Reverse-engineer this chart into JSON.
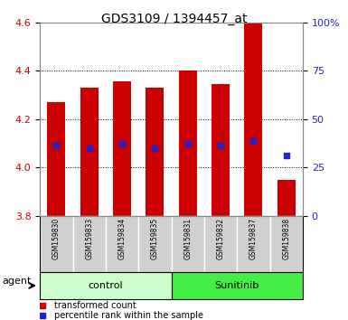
{
  "title": "GDS3109 / 1394457_at",
  "samples": [
    "GSM159830",
    "GSM159833",
    "GSM159834",
    "GSM159835",
    "GSM159831",
    "GSM159832",
    "GSM159837",
    "GSM159838"
  ],
  "bar_tops": [
    4.27,
    4.33,
    4.355,
    4.33,
    4.4,
    4.345,
    4.6,
    3.95
  ],
  "bar_bottom": 3.8,
  "percentile_values": [
    4.09,
    4.08,
    4.1,
    4.08,
    4.1,
    4.09,
    4.11,
    4.05
  ],
  "ylim_left": [
    3.8,
    4.6
  ],
  "ylim_right": [
    0,
    100
  ],
  "yticks_left": [
    3.8,
    4.0,
    4.2,
    4.4,
    4.6
  ],
  "yticks_right": [
    0,
    25,
    50,
    75,
    100
  ],
  "ytick_labels_right": [
    "0",
    "25",
    "50",
    "75",
    "100%"
  ],
  "bar_color": "#cc0000",
  "percentile_color": "#2222cc",
  "bar_width": 0.55,
  "groups": [
    {
      "label": "control",
      "indices": [
        0,
        1,
        2,
        3
      ],
      "color": "#ccffcc"
    },
    {
      "label": "Sunitinib",
      "indices": [
        4,
        5,
        6,
        7
      ],
      "color": "#44ee44"
    }
  ],
  "agent_label": "agent",
  "legend_items": [
    {
      "label": "transformed count",
      "color": "#cc0000"
    },
    {
      "label": "percentile rank within the sample",
      "color": "#2222cc"
    }
  ],
  "title_fontsize": 10,
  "tick_fontsize": 8,
  "sample_fontsize": 5.5,
  "group_fontsize": 8,
  "legend_fontsize": 7,
  "agent_fontsize": 8,
  "label_area_bg": "#d0d0d0",
  "spine_color": "#888888"
}
